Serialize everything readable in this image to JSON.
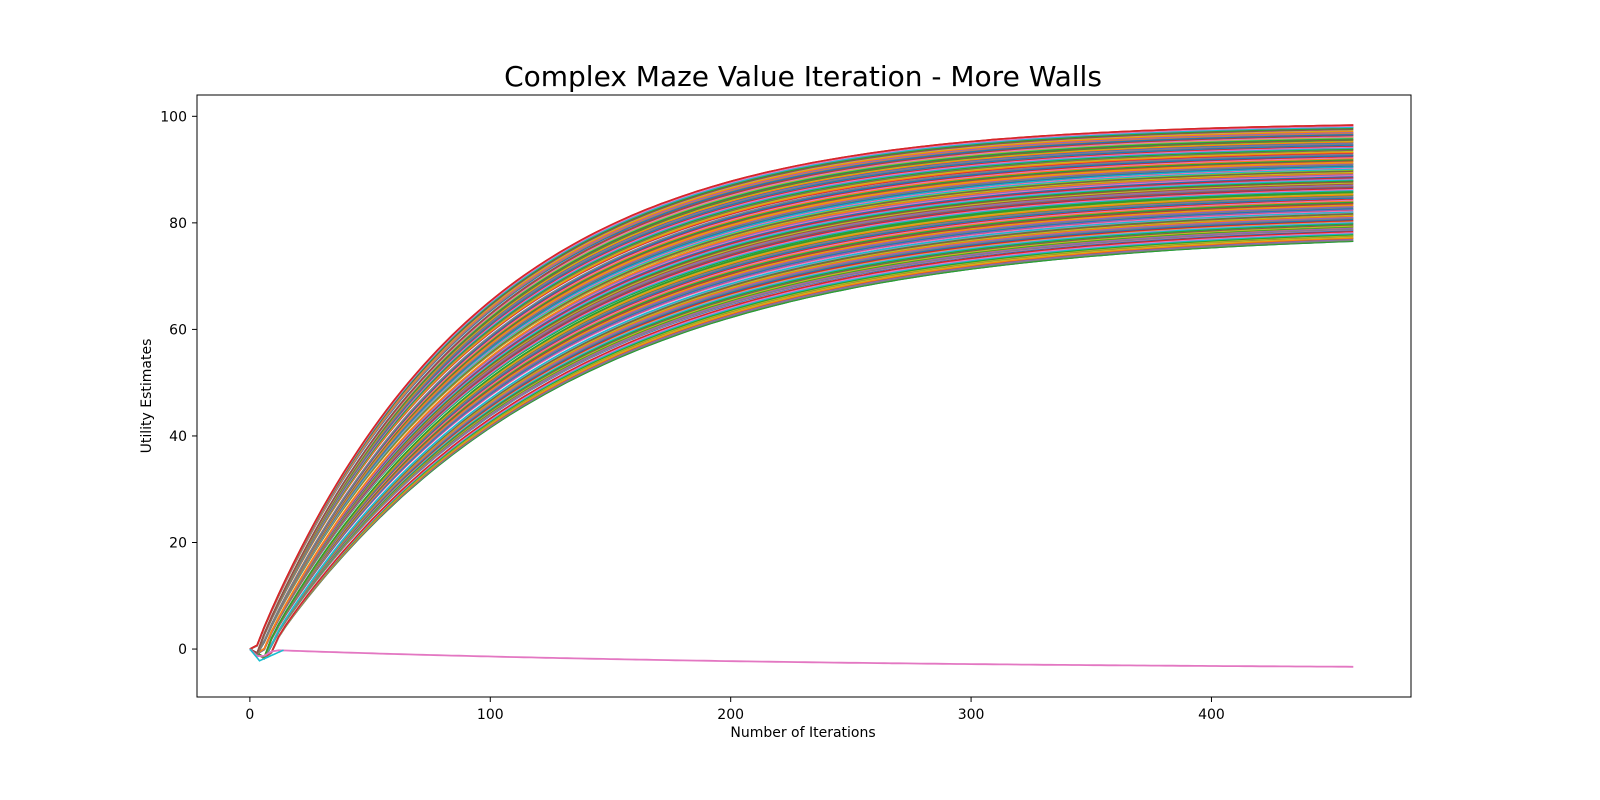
{
  "chart_data": {
    "type": "line",
    "title": "Complex Maze Value Iteration - More Walls",
    "xlabel": "Number of Iterations",
    "ylabel": "Utility Estimates",
    "xlim": [
      -22,
      483
    ],
    "ylim": [
      -9,
      104
    ],
    "xticks": [
      0,
      100,
      200,
      300,
      400
    ],
    "yticks": [
      0,
      20,
      40,
      60,
      80,
      100
    ],
    "grid": false,
    "legend": "none",
    "iterations": 459,
    "series_description": "approximately 150 state utility curves rising from 0 toward final values between 78.5 and 99, plus one terminal-adjacent curve declining to about -3.8",
    "rising_final_min": 78.5,
    "rising_final_max": 99.0,
    "series": [
      {
        "final": 99.0,
        "color": "#d62728"
      },
      {
        "final": 98.6,
        "color": "#d62728"
      },
      {
        "final": 98.2,
        "color": "#e377c2"
      },
      {
        "final": 97.6,
        "color": "#ff7f0e"
      },
      {
        "final": 97.2,
        "color": "#8c564b"
      },
      {
        "final": 96.8,
        "color": "#bcbd22"
      },
      {
        "final": 96.3,
        "color": "#2ca02c"
      },
      {
        "final": 95.9,
        "color": "#1f77b4"
      },
      {
        "final": 95.4,
        "color": "#17becf"
      },
      {
        "final": 95.0,
        "color": "#9467bd"
      },
      {
        "final": 94.6,
        "color": "#7f7f7f"
      },
      {
        "final": 94.0,
        "color": "#d62728"
      },
      {
        "final": 93.5,
        "color": "#1f77b4"
      },
      {
        "final": 93.0,
        "color": "#ff7f0e"
      },
      {
        "final": 92.5,
        "color": "#ff7f0e"
      },
      {
        "final": 92.0,
        "color": "#2ca02c"
      },
      {
        "final": 91.5,
        "color": "#17becf"
      },
      {
        "final": 91.0,
        "color": "#bcbd22"
      },
      {
        "final": 90.5,
        "color": "#8c564b"
      },
      {
        "final": 90.0,
        "color": "#e377c2"
      },
      {
        "final": 89.5,
        "color": "#9467bd"
      },
      {
        "final": 89.0,
        "color": "#d62728"
      },
      {
        "final": 88.5,
        "color": "#8c564b"
      },
      {
        "final": 88.0,
        "color": "#d62728"
      },
      {
        "final": 87.5,
        "color": "#7f7f7f"
      },
      {
        "final": 87.0,
        "color": "#2ca02c"
      },
      {
        "final": 86.5,
        "color": "#2ca02c"
      },
      {
        "final": 86.0,
        "color": "#17becf"
      },
      {
        "final": 85.5,
        "color": "#ff7f0e"
      },
      {
        "final": 85.0,
        "color": "#d62728"
      },
      {
        "final": 84.5,
        "color": "#1f77b4"
      },
      {
        "final": 84.0,
        "color": "#9467bd"
      },
      {
        "final": 83.5,
        "color": "#e377c2"
      },
      {
        "final": 83.0,
        "color": "#8c564b"
      },
      {
        "final": 82.5,
        "color": "#7f7f7f"
      },
      {
        "final": 82.0,
        "color": "#bcbd22"
      },
      {
        "final": 81.5,
        "color": "#17becf"
      },
      {
        "final": 81.0,
        "color": "#2ca02c"
      },
      {
        "final": 80.5,
        "color": "#e377c2"
      },
      {
        "final": 80.0,
        "color": "#9467bd"
      },
      {
        "final": 79.5,
        "color": "#bcbd22"
      },
      {
        "final": 79.0,
        "color": "#8c564b"
      },
      {
        "final": 78.5,
        "color": "#2ca02c"
      },
      {
        "final": -3.8,
        "color": "#e377c2",
        "declining": true
      }
    ],
    "palette": [
      "#1f77b4",
      "#ff7f0e",
      "#2ca02c",
      "#d62728",
      "#9467bd",
      "#8c564b",
      "#e377c2",
      "#7f7f7f",
      "#bcbd22",
      "#17becf"
    ]
  }
}
